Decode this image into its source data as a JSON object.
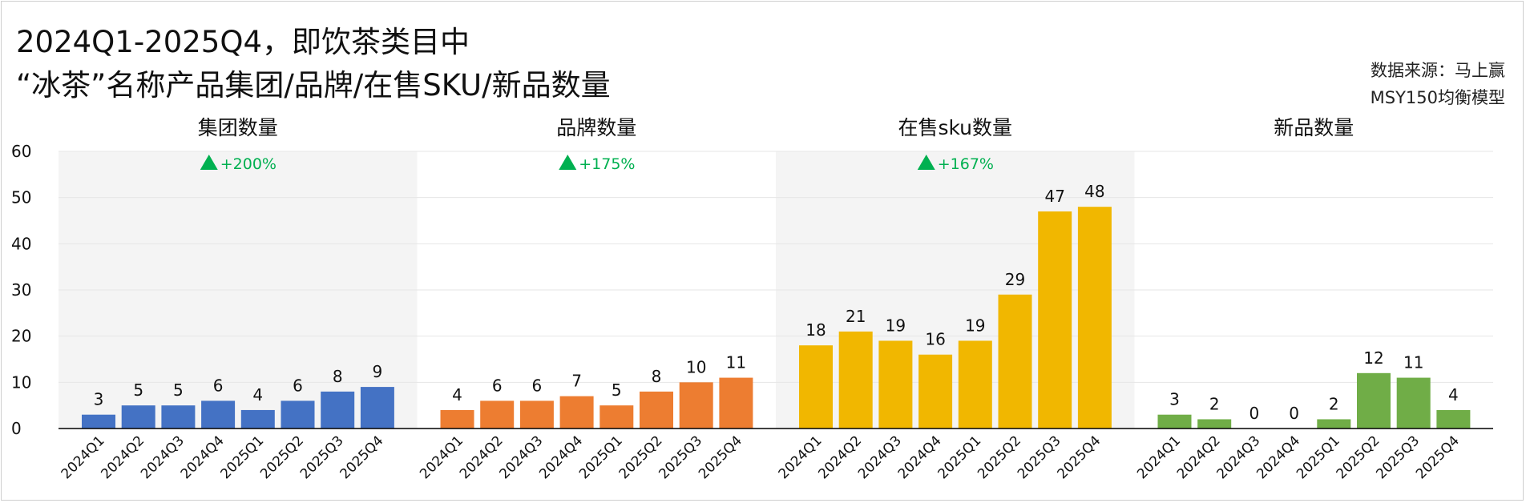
{
  "title_line1": "2024Q1-2025Q4，即饮茶类目中",
  "title_line2": "“冰茶”名称产品集团/品牌/在售SKU/新品数量",
  "source_line1": "数据来源：马上赢",
  "source_line2": "MSY150均衡模型",
  "colors": {
    "panel_shade": "#f4f4f4",
    "growth": "#00b050",
    "axis": "#000000",
    "gridline": "#e6e6e6"
  },
  "chart_data": {
    "type": "bar",
    "ylim": [
      0,
      60
    ],
    "yticks": [
      "0",
      "10",
      "20",
      "30",
      "40",
      "50",
      "60"
    ],
    "grid": true,
    "categories": [
      "2024Q1",
      "2024Q2",
      "2024Q3",
      "2024Q4",
      "2025Q1",
      "2025Q2",
      "2025Q3",
      "2025Q4"
    ],
    "panels": [
      {
        "title": "集团数量",
        "color": "#4472c4",
        "growth": "+200%",
        "shaded": true,
        "values": [
          3,
          5,
          5,
          6,
          4,
          6,
          8,
          9
        ]
      },
      {
        "title": "品牌数量",
        "color": "#ed7d31",
        "growth": "+175%",
        "shaded": false,
        "values": [
          4,
          6,
          6,
          7,
          5,
          8,
          10,
          11
        ]
      },
      {
        "title": "在售sku数量",
        "color": "#f1b700",
        "growth": "+167%",
        "shaded": true,
        "values": [
          18,
          21,
          19,
          16,
          19,
          29,
          47,
          48
        ]
      },
      {
        "title": "新品数量",
        "color": "#70ad47",
        "growth": "",
        "shaded": false,
        "values": [
          3,
          2,
          0,
          0,
          2,
          12,
          11,
          4
        ]
      }
    ]
  }
}
